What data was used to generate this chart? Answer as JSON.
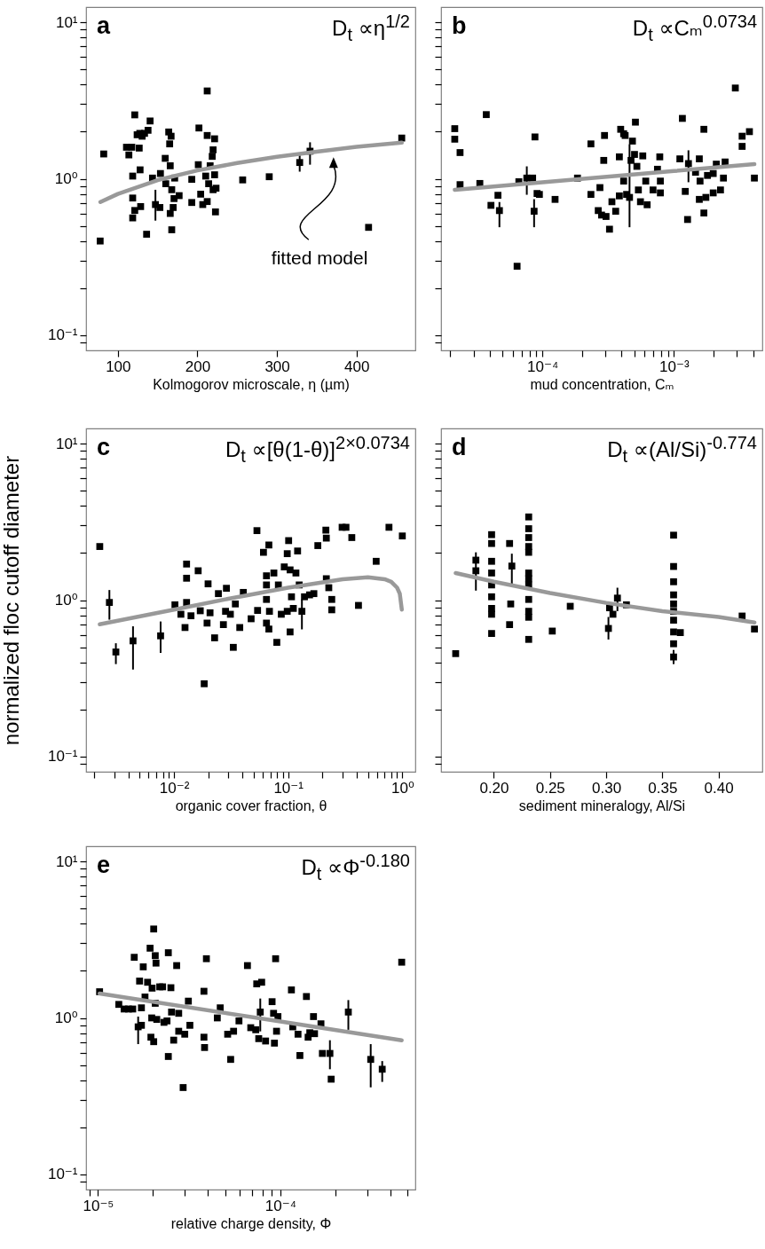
{
  "chart_data": [
    {
      "type": "scatter",
      "title": "a",
      "annotations": [
        "D$_{t}$ ∝η$^{1/2}$",
        "fitted model"
      ],
      "xlabel": "Kolmogorov microscale, η (µm)",
      "log": "y",
      "marker": "square",
      "xlim": [
        60,
        474
      ],
      "xticks": [
        100,
        200,
        300,
        400
      ],
      "ylim": [
        0.08,
        12.5
      ],
      "yticks": [
        {
          "value": 0.09,
          "label": null
        },
        {
          "value": 0.1,
          "label": "10⁻¹"
        },
        {
          "value": 0.2,
          "label": null
        },
        {
          "value": 0.3,
          "label": null
        },
        {
          "value": 0.4,
          "label": null
        },
        {
          "value": 0.5,
          "label": null
        },
        {
          "value": 0.6,
          "label": null
        },
        {
          "value": 0.7,
          "label": null
        },
        {
          "value": 0.8,
          "label": null
        },
        {
          "value": 0.9,
          "label": null
        },
        {
          "value": 1,
          "label": "10⁰"
        },
        {
          "value": 2,
          "label": null
        },
        {
          "value": 3,
          "label": null
        },
        {
          "value": 4,
          "label": null
        },
        {
          "value": 5,
          "label": null
        },
        {
          "value": 6,
          "label": null
        },
        {
          "value": 7,
          "label": null
        },
        {
          "value": 8,
          "label": null
        },
        {
          "value": 9,
          "label": null
        },
        {
          "value": 10,
          "label": "10¹"
        }
      ],
      "series": [
        {
          "color": "#000000",
          "x": [
            77.7,
            82.2,
            110.8,
            113.8,
            117.5,
            126.8,
            121.2,
            124.2,
            127.5,
            130.5,
            133.5,
            137.9,
            140.5,
            118.6,
            127.9,
            118.6,
            121.2,
            128.6,
            118.6,
            136.1,
            143.5,
            147.2,
            152.8,
            153.5,
            159.5,
            163.9,
            165.1,
            166.9,
            160.2,
            165.8,
            167.7,
            169.5,
            170.6,
            167.7,
            165.8,
            171.4,
            177.0,
            192.9,
            192.9,
            201.9,
            201.1,
            212.3,
            221.6,
            219.7,
            218.6,
            204.1,
            206.7,
            210.4,
            214.1,
            216.0,
            219.7,
            222.7,
            223.4,
            212.3,
            221.6,
            212.3,
            256.9,
            290.3,
            328.6,
            341.6,
            415.2,
            456.9
          ],
          "values": [
            0.4,
            1.44,
            1.59,
            1.42,
            1.59,
            1.57,
            2.56,
            1.91,
            1.95,
            1.87,
            1.95,
            2.04,
            2.34,
            1.04,
            1.14,
            0.753,
            0.627,
            0.664,
            0.562,
            0.442,
            1.01,
            0.684,
            0.655,
            1.08,
            1.35,
            1.99,
            1.67,
            1.87,
            0.929,
            1.21,
            0.851,
            0.655,
            0.747,
            0.472,
            0.6,
            1.01,
            0.78,
            0.991,
            0.705,
            2.11,
            1.23,
            1.89,
            1.8,
            1.53,
            1.39,
            0.797,
            0.684,
            1.04,
            0.929,
            1.21,
            0.851,
            0.614,
            0.87,
            0.715,
            1.06,
            3.64,
            0.983,
            1.03,
            1.27,
            1.5,
            0.489,
            1.82
          ],
          "errors": [
            null,
            null,
            null,
            null,
            null,
            null,
            null,
            null,
            null,
            null,
            null,
            null,
            null,
            null,
            null,
            null,
            null,
            null,
            null,
            null,
            null,
            [
              0.54,
              0.85
            ],
            null,
            null,
            null,
            null,
            null,
            null,
            null,
            null,
            null,
            null,
            null,
            null,
            null,
            null,
            null,
            null,
            null,
            null,
            null,
            null,
            null,
            null,
            null,
            null,
            null,
            null,
            null,
            null,
            null,
            null,
            null,
            null,
            null,
            null,
            null,
            null,
            [
              1.11,
              1.41
            ],
            [
              1.23,
              1.71
            ],
            null,
            null
          ]
        },
        {
          "type": "line",
          "marker": "none",
          "color": "#999999",
          "x": [
            78,
            100,
            150,
            200,
            250,
            300,
            350,
            400,
            457
          ],
          "values": [
            0.71,
            0.8,
            0.98,
            1.13,
            1.26,
            1.38,
            1.49,
            1.6,
            1.7
          ]
        }
      ]
    },
    {
      "type": "scatter",
      "title": "b",
      "annotations": [
        "D$_{t}$ ∝Cₘ$^{0.0734}$"
      ],
      "xlabel": "mud concentration, Cₘ",
      "log": "xy",
      "marker": "square",
      "tick_labels": "x",
      "xlim": [
        1.7e-05,
        0.0047
      ],
      "yticks": [
        {
          "value": 0.09,
          "label": null
        },
        {
          "value": 0.1,
          "label": null
        },
        {
          "value": 0.2,
          "label": null
        },
        {
          "value": 0.3,
          "label": null
        },
        {
          "value": 0.4,
          "label": null
        },
        {
          "value": 0.5,
          "label": null
        },
        {
          "value": 0.6,
          "label": null
        },
        {
          "value": 0.7,
          "label": null
        },
        {
          "value": 0.8,
          "label": null
        },
        {
          "value": 0.9,
          "label": null
        },
        {
          "value": 1,
          "label": null
        },
        {
          "value": 2,
          "label": null
        },
        {
          "value": 3,
          "label": null
        },
        {
          "value": 4,
          "label": null
        },
        {
          "value": 5,
          "label": null
        },
        {
          "value": 6,
          "label": null
        },
        {
          "value": 7,
          "label": null
        },
        {
          "value": 8,
          "label": null
        },
        {
          "value": 9,
          "label": null
        },
        {
          "value": 10,
          "label": null
        }
      ],
      "xticks": [
        {
          "value": 2e-05,
          "label": null
        },
        {
          "value": 3e-05,
          "label": null
        },
        {
          "value": 4e-05,
          "label": null
        },
        {
          "value": 5e-05,
          "label": null
        },
        {
          "value": 6e-05,
          "label": null
        },
        {
          "value": 7e-05,
          "label": null
        },
        {
          "value": 8e-05,
          "label": null
        },
        {
          "value": 9e-05,
          "label": null
        },
        {
          "value": 0.0001,
          "label": "10⁻⁴"
        },
        {
          "value": 0.0002,
          "label": null
        },
        {
          "value": 0.0003,
          "label": null
        },
        {
          "value": 0.0004,
          "label": null
        },
        {
          "value": 0.0005,
          "label": null
        },
        {
          "value": 0.0006,
          "label": null
        },
        {
          "value": 0.0007,
          "label": null
        },
        {
          "value": 0.0008,
          "label": null
        },
        {
          "value": 0.0009,
          "label": null
        },
        {
          "value": 0.001,
          "label": "10⁻³"
        },
        {
          "value": 0.002,
          "label": null
        },
        {
          "value": 0.003,
          "label": null
        },
        {
          "value": 0.004,
          "label": null
        }
      ],
      "ylim": [
        0.08,
        12.5
      ],
      "series": [
        {
          "color": "#000000",
          "x": [
            2.16e-05,
            2.16e-05,
            2.37e-05,
            2.37e-05,
            3.75e-05,
            3.35e-05,
            4.07e-05,
            4.6e-05,
            4.72e-05,
            6.43e-05,
            6.63e-05,
            7.62e-05,
            8.44e-05,
            8.79e-05,
            8.66e-05,
            9.12e-05,
            9.5e-05,
            0.000125,
            0.000185,
            0.000234,
            0.000234,
            0.000274,
            0.000297,
            0.000293,
            0.000266,
            0.000282,
            0.000305,
            0.000324,
            0.000338,
            0.000361,
            0.000385,
            0.000385,
            0.000394,
            0.000415,
            0.000426,
            0.000415,
            0.000437,
            0.00046,
            0.000484,
            0.000472,
            0.00051,
            0.000502,
            0.000523,
            0.000537,
            0.00058,
            0.000557,
            0.000611,
            0.000626,
            0.000694,
            0.00075,
            0.000781,
            0.000789,
            0.000789,
            0.00111,
            0.00116,
            0.00122,
            0.00129,
            0.00127,
            0.00146,
            0.00156,
            0.00158,
            0.00156,
            0.00169,
            0.00169,
            0.00175,
            0.0018,
            0.00199,
            0.00199,
            0.0021,
            0.00226,
            0.00238,
            0.00245,
            0.00293,
            0.0033,
            0.0033,
            0.00375,
            0.00409
          ],
          "values": [
            2.09,
            1.79,
            1.47,
            0.917,
            2.57,
            0.933,
            0.676,
            0.784,
            0.626,
            0.276,
            0.957,
            1.01,
            1.01,
            1.85,
            0.62,
            0.805,
            0.794,
            0.738,
            1.01,
            1.67,
            0.794,
            0.878,
            1.89,
            1.31,
            0.626,
            0.586,
            0.574,
            0.476,
            0.713,
            0.62,
            1.38,
            0.777,
            2.07,
            1.94,
            1.89,
            0.966,
            0.794,
            0.76,
            1.74,
            1.31,
            2.3,
            1.43,
            1.2,
            0.848,
            1.4,
            0.713,
            0.966,
            0.682,
            0.848,
            1.15,
            1.38,
            0.966,
            0.812,
            1.34,
            2.43,
            0.83,
            1.25,
            0.549,
            1.1,
            1.34,
            0.966,
            0.738,
            2.07,
            0.604,
            0.76,
            1.05,
            1.08,
            0.812,
            1.24,
            0.848,
            1.01,
            1.28,
            3.8,
            1.87,
            1.61,
            2.0,
            1.01
          ],
          "errors": [
            null,
            null,
            null,
            null,
            null,
            null,
            null,
            null,
            [
              0.49,
              0.71
            ],
            null,
            null,
            [
              0.79,
              1.2
            ],
            null,
            null,
            [
              0.49,
              0.74
            ],
            null,
            null,
            null,
            null,
            null,
            null,
            null,
            null,
            null,
            null,
            null,
            null,
            null,
            null,
            null,
            null,
            null,
            null,
            null,
            null,
            null,
            null,
            [
              0.49,
              1.66
            ],
            null,
            null,
            null,
            null,
            null,
            null,
            null,
            null,
            null,
            null,
            null,
            null,
            null,
            null,
            null,
            null,
            null,
            null,
            [
              0.95,
              1.52
            ],
            null,
            null,
            null,
            null,
            null,
            null,
            null,
            null,
            null,
            null,
            null,
            null,
            null,
            null,
            null,
            null,
            null,
            null,
            null,
            null
          ]
        },
        {
          "type": "line",
          "marker": "none",
          "color": "#999999",
          "x": [
            2.16e-05,
            0.0001,
            0.001,
            0.00409
          ],
          "values": [
            0.85,
            0.95,
            1.12,
            1.24
          ]
        }
      ]
    },
    {
      "type": "scatter",
      "title": "c",
      "annotations": [
        "D$_{t}$ ∝[θ(1-θ)]$^{2×0.0734}$"
      ],
      "xlabel": "organic cover fraction, θ",
      "ylabel": "normalized floc cutoff diameter",
      "log": "xy",
      "marker": "square",
      "xlim": [
        0.0017,
        1.3
      ],
      "xticks": [
        {
          "value": 0.002,
          "label": null
        },
        {
          "value": 0.003,
          "label": null
        },
        {
          "value": 0.004,
          "label": null
        },
        {
          "value": 0.005,
          "label": null
        },
        {
          "value": 0.006,
          "label": null
        },
        {
          "value": 0.007,
          "label": null
        },
        {
          "value": 0.008,
          "label": null
        },
        {
          "value": 0.009,
          "label": null
        },
        {
          "value": 0.01,
          "label": "10⁻²"
        },
        {
          "value": 0.02,
          "label": null
        },
        {
          "value": 0.03,
          "label": null
        },
        {
          "value": 0.04,
          "label": null
        },
        {
          "value": 0.05,
          "label": null
        },
        {
          "value": 0.06,
          "label": null
        },
        {
          "value": 0.07,
          "label": null
        },
        {
          "value": 0.08,
          "label": null
        },
        {
          "value": 0.09,
          "label": null
        },
        {
          "value": 0.1,
          "label": "10⁻¹"
        },
        {
          "value": 0.2,
          "label": null
        },
        {
          "value": 0.3,
          "label": null
        },
        {
          "value": 0.4,
          "label": null
        },
        {
          "value": 0.5,
          "label": null
        },
        {
          "value": 0.6,
          "label": null
        },
        {
          "value": 0.7,
          "label": null
        },
        {
          "value": 0.8,
          "label": null
        },
        {
          "value": 0.9,
          "label": null
        },
        {
          "value": 1,
          "label": "10⁰"
        }
      ],
      "ylim": [
        0.08,
        12.5
      ],
      "yticks": [
        {
          "value": 0.09,
          "label": null
        },
        {
          "value": 0.1,
          "label": "10⁻¹"
        },
        {
          "value": 0.2,
          "label": null
        },
        {
          "value": 0.3,
          "label": null
        },
        {
          "value": 0.4,
          "label": null
        },
        {
          "value": 0.5,
          "label": null
        },
        {
          "value": 0.6,
          "label": null
        },
        {
          "value": 0.7,
          "label": null
        },
        {
          "value": 0.8,
          "label": null
        },
        {
          "value": 0.9,
          "label": null
        },
        {
          "value": 1,
          "label": "10⁰"
        },
        {
          "value": 2,
          "label": null
        },
        {
          "value": 3,
          "label": null
        },
        {
          "value": 4,
          "label": null
        },
        {
          "value": 5,
          "label": null
        },
        {
          "value": 6,
          "label": null
        },
        {
          "value": 7,
          "label": null
        },
        {
          "value": 8,
          "label": null
        },
        {
          "value": 9,
          "label": null
        },
        {
          "value": 10,
          "label": "10¹"
        }
      ],
      "series": [
        {
          "color": "#000000",
          "x": [
            0.00224,
            0.00272,
            0.0031,
            0.00438,
            0.00764,
            0.0102,
            0.0129,
            0.0129,
            0.0129,
            0.0115,
            0.0125,
            0.0141,
            0.0163,
            0.017,
            0.0199,
            0.0195,
            0.0207,
            0.0227,
            0.0245,
            0.0288,
            0.0283,
            0.0271,
            0.0312,
            0.0331,
            0.0345,
            0.0377,
            0.0405,
            0.0184,
            0.0474,
            0.0533,
            0.054,
            0.0608,
            0.0678,
            0.0646,
            0.0646,
            0.0646,
            0.0646,
            0.0686,
            0.0678,
            0.075,
            0.0796,
            0.0821,
            0.0871,
            0.0925,
            0.0982,
            0.101,
            0.0982,
            0.104,
            0.107,
            0.104,
            0.111,
            0.117,
            0.121,
            0.125,
            0.132,
            0.139,
            0.154,
            0.168,
            0.182,
            0.216,
            0.214,
            0.216,
            0.227,
            0.241,
            0.241,
            0.297,
            0.321,
            0.361,
            0.413,
            0.59,
            0.764,
            1.0
          ],
          "values": [
            2.2,
            0.966,
            0.466,
            0.549,
            0.591,
            0.933,
            1.7,
            1.38,
            0.966,
            0.812,
            0.668,
            0.794,
            1.54,
            0.855,
            1.27,
            0.713,
            0.83,
            0.574,
            1.1,
            1.19,
            0.848,
            0.697,
            0.812,
            0.499,
            0.945,
            0.668,
            1.12,
            0.292,
            0.76,
            2.78,
            0.859,
            2.02,
            2.25,
            1.43,
            1.25,
            1.01,
            0.713,
            0.848,
            0.653,
            1.49,
            0.537,
            1.25,
            0.812,
            1.63,
            0.848,
            2.4,
            1.98,
            1.56,
            1.05,
            0.626,
            0.885,
            1.49,
            2.06,
            1.25,
            0.848,
            1.05,
            1.08,
            1.1,
            2.23,
            2.49,
            2.8,
            1.37,
            1.2,
            1.01,
            0.867,
            2.92,
            2.92,
            2.51,
            0.925,
            1.77,
            2.92,
            2.57
          ],
          "errors": [
            null,
            [
              0.75,
              1.16
            ],
            [
              0.39,
              0.53
            ],
            [
              0.36,
              0.68
            ],
            [
              0.46,
              0.73
            ],
            null,
            null,
            null,
            null,
            null,
            null,
            null,
            null,
            null,
            null,
            null,
            null,
            null,
            null,
            null,
            null,
            null,
            null,
            null,
            null,
            null,
            null,
            null,
            null,
            null,
            null,
            null,
            null,
            null,
            null,
            null,
            null,
            null,
            null,
            null,
            null,
            null,
            null,
            null,
            null,
            null,
            null,
            null,
            null,
            null,
            null,
            null,
            null,
            null,
            [
              0.65,
              1.01
            ],
            null,
            null,
            null,
            null,
            null,
            null,
            null,
            null,
            null,
            null,
            null,
            null,
            null,
            null,
            null,
            null,
            null
          ]
        },
        {
          "type": "line",
          "marker": "none",
          "color": "#999999",
          "x": [
            0.00224,
            0.01,
            0.03,
            0.1,
            0.3,
            0.5,
            0.7,
            0.8,
            0.9,
            0.95,
            0.99
          ],
          "values": [
            0.7,
            0.87,
            1.02,
            1.2,
            1.36,
            1.4,
            1.36,
            1.31,
            1.2,
            1.1,
            0.87
          ]
        }
      ]
    },
    {
      "type": "scatter",
      "title": "d",
      "annotations": [
        "D$_{t}$ ∝(Al/Si)$^{-0.774}$"
      ],
      "xlabel": "sediment mineralogy, Al/Si",
      "log": "y",
      "marker": "square",
      "tick_labels": "x",
      "xlim": [
        0.153,
        0.439
      ],
      "yticks": [
        {
          "value": 0.09,
          "label": null
        },
        {
          "value": 0.1,
          "label": null
        },
        {
          "value": 0.2,
          "label": null
        },
        {
          "value": 0.3,
          "label": null
        },
        {
          "value": 0.4,
          "label": null
        },
        {
          "value": 0.5,
          "label": null
        },
        {
          "value": 0.6,
          "label": null
        },
        {
          "value": 0.7,
          "label": null
        },
        {
          "value": 0.8,
          "label": null
        },
        {
          "value": 0.9,
          "label": null
        },
        {
          "value": 1,
          "label": null
        },
        {
          "value": 2,
          "label": null
        },
        {
          "value": 3,
          "label": null
        },
        {
          "value": 4,
          "label": null
        },
        {
          "value": 5,
          "label": null
        },
        {
          "value": 6,
          "label": null
        },
        {
          "value": 7,
          "label": null
        },
        {
          "value": 8,
          "label": null
        },
        {
          "value": 9,
          "label": null
        },
        {
          "value": 10,
          "label": null
        }
      ],
      "xticks": [
        {
          "value": 0.2,
          "label": "0.20"
        },
        {
          "value": 0.25,
          "label": "0.25"
        },
        {
          "value": 0.3,
          "label": "0.30"
        },
        {
          "value": 0.35,
          "label": "0.35"
        },
        {
          "value": 0.4,
          "label": "0.40"
        }
      ],
      "ylim": [
        0.08,
        12.5
      ],
      "series": [
        {
          "color": "#000000",
          "x": [
            0.166,
            0.184,
            0.184,
            0.198,
            0.198,
            0.198,
            0.198,
            0.198,
            0.198,
            0.198,
            0.198,
            0.198,
            0.214,
            0.216,
            0.215,
            0.214,
            0.231,
            0.231,
            0.231,
            0.231,
            0.231,
            0.231,
            0.231,
            0.231,
            0.231,
            0.231,
            0.231,
            0.231,
            0.252,
            0.268,
            0.302,
            0.303,
            0.306,
            0.31,
            0.318,
            0.36,
            0.36,
            0.36,
            0.36,
            0.36,
            0.36,
            0.36,
            0.36,
            0.36,
            0.36,
            0.366,
            0.421,
            0.432
          ],
          "values": [
            0.455,
            1.8,
            1.54,
            2.62,
            2.3,
            1.77,
            1.49,
            1.25,
            1.05,
            0.885,
            0.812,
            0.612,
            2.3,
            1.65,
            0.945,
            0.697,
            3.4,
            2.86,
            2.51,
            2.2,
            2.02,
            1.49,
            1.37,
            1.25,
            1.01,
            0.848,
            0.777,
            0.561,
            0.634,
            0.913,
            0.659,
            0.893,
            0.812,
            1.03,
            0.933,
            2.6,
            1.64,
            1.31,
            1.08,
            0.945,
            0.848,
            0.744,
            0.626,
            0.526,
            0.433,
            0.62,
            0.791,
            0.653
          ],
          "errors": [
            null,
            null,
            [
              1.15,
              2.02
            ],
            null,
            null,
            null,
            null,
            null,
            null,
            null,
            null,
            null,
            null,
            [
              1.25,
              1.98
            ],
            null,
            null,
            null,
            null,
            null,
            null,
            null,
            null,
            null,
            null,
            null,
            null,
            null,
            null,
            null,
            null,
            [
              0.56,
              0.78
            ],
            null,
            null,
            [
              0.85,
              1.2
            ],
            null,
            null,
            null,
            null,
            null,
            null,
            null,
            null,
            null,
            null,
            [
              0.39,
              0.48
            ],
            null,
            null,
            null
          ]
        },
        {
          "type": "line",
          "marker": "none",
          "color": "#999999",
          "x": [
            0.166,
            0.2,
            0.25,
            0.3,
            0.35,
            0.4,
            0.432
          ],
          "values": [
            1.49,
            1.31,
            1.11,
            0.96,
            0.85,
            0.78,
            0.72
          ]
        }
      ]
    },
    {
      "type": "scatter",
      "title": "e",
      "annotations": [
        "D$_{t}$ ∝Φ$^{-0.180}$"
      ],
      "xlabel": "relative charge density, Φ",
      "log": "xy",
      "marker": "square",
      "xlim": [
        8.6e-06,
        0.00055
      ],
      "xticks": [
        {
          "value": 9e-06,
          "label": null
        },
        {
          "value": 1e-05,
          "label": "10⁻⁵"
        },
        {
          "value": 2e-05,
          "label": null
        },
        {
          "value": 3e-05,
          "label": null
        },
        {
          "value": 4e-05,
          "label": null
        },
        {
          "value": 5e-05,
          "label": null
        },
        {
          "value": 6e-05,
          "label": null
        },
        {
          "value": 7e-05,
          "label": null
        },
        {
          "value": 8e-05,
          "label": null
        },
        {
          "value": 9e-05,
          "label": null
        },
        {
          "value": 0.0001,
          "label": "10⁻⁴"
        },
        {
          "value": 0.0002,
          "label": null
        },
        {
          "value": 0.0003,
          "label": null
        },
        {
          "value": 0.0004,
          "label": null
        },
        {
          "value": 0.0005,
          "label": null
        }
      ],
      "ylim": [
        0.08,
        12.5
      ],
      "yticks": [
        {
          "value": 0.09,
          "label": null
        },
        {
          "value": 0.1,
          "label": "10⁻¹"
        },
        {
          "value": 0.2,
          "label": null
        },
        {
          "value": 0.3,
          "label": null
        },
        {
          "value": 0.4,
          "label": null
        },
        {
          "value": 0.5,
          "label": null
        },
        {
          "value": 0.6,
          "label": null
        },
        {
          "value": 0.7,
          "label": null
        },
        {
          "value": 0.8,
          "label": null
        },
        {
          "value": 0.9,
          "label": null
        },
        {
          "value": 1,
          "label": "10⁰"
        },
        {
          "value": 2,
          "label": null
        },
        {
          "value": 3,
          "label": null
        },
        {
          "value": 4,
          "label": null
        },
        {
          "value": 5,
          "label": null
        },
        {
          "value": 6,
          "label": null
        },
        {
          "value": 7,
          "label": null
        },
        {
          "value": 8,
          "label": null
        },
        {
          "value": 9,
          "label": null
        },
        {
          "value": 10,
          "label": "10¹"
        }
      ],
      "series": [
        {
          "color": "#000000",
          "x": [
            1.02e-05,
            1.3e-05,
            1.39e-05,
            1.47e-05,
            1.55e-05,
            1.58e-05,
            1.66e-05,
            1.73e-05,
            1.69e-05,
            1.73e-05,
            1.77e-05,
            1.81e-05,
            1.87e-05,
            1.93e-05,
            1.98e-05,
            2.02e-05,
            1.95e-05,
            2.02e-05,
            2.06e-05,
            2.08e-05,
            2.06e-05,
            1.97e-05,
            2.1e-05,
            2.18e-05,
            2.26e-05,
            2.3e-05,
            2.39e-05,
            2.43e-05,
            2.43e-05,
            2.51e-05,
            2.53e-05,
            2.6e-05,
            2.7e-05,
            2.77e-05,
            2.77e-05,
            2.93e-05,
            2.99e-05,
            3.13e-05,
            3.19e-05,
            3.81e-05,
            3.81e-05,
            3.84e-05,
            3.93e-05,
            4.51e-05,
            4.68e-05,
            5.14e-05,
            5.34e-05,
            5.54e-05,
            5.93e-05,
            6.6e-05,
            6.88e-05,
            7.33e-05,
            7.42e-05,
            7.61e-05,
            7.9e-05,
            7.76e-05,
            8.3e-05,
            9.01e-05,
            9.18e-05,
            9.28e-05,
            9.42e-05,
            9.53e-05,
            9.7e-05,
            0.000115,
            0.000117,
            0.000125,
            0.000128,
            0.000139,
            0.000142,
            0.000145,
            0.000152,
            0.000154,
            0.000167,
            0.00017,
            0.00019,
            0.000187,
            0.000236,
            0.000313,
            0.000362,
            0.000463
          ],
          "values": [
            1.47,
            1.22,
            1.14,
            1.14,
            1.14,
            2.44,
            0.877,
            0.897,
            1.72,
            1.16,
            2.12,
            1.36,
            1.69,
            2.79,
            1.55,
            3.7,
            0.753,
            0.705,
            2.5,
            2.24,
            1.24,
            1.0,
            0.978,
            1.58,
            1.58,
            0.937,
            0.957,
            2.61,
            0.567,
            1.56,
            1.09,
            0.721,
            2.16,
            1.07,
            0.822,
            0.359,
            0.787,
            1.28,
            0.897,
            1.48,
            0.753,
            0.647,
            2.39,
            1.0,
            1.16,
            0.787,
            0.543,
            0.822,
            0.957,
            2.16,
            0.866,
            0.84,
            1.65,
            0.737,
            1.69,
            1.09,
            0.712,
            1.27,
            1.07,
            0.69,
            2.39,
            0.822,
            1.02,
            1.51,
            0.877,
            0.787,
            0.575,
            1.37,
            0.753,
            0.804,
            1.02,
            0.793,
            0.917,
            0.593,
            0.406,
            0.593,
            1.09,
            0.543,
            0.47,
            2.27
          ],
          "errors": [
            null,
            null,
            null,
            null,
            null,
            null,
            [
              0.68,
              1.02
            ],
            null,
            null,
            null,
            null,
            null,
            null,
            null,
            null,
            null,
            null,
            null,
            null,
            null,
            null,
            null,
            null,
            null,
            null,
            null,
            null,
            null,
            null,
            null,
            null,
            null,
            null,
            null,
            null,
            null,
            null,
            null,
            null,
            null,
            null,
            null,
            null,
            null,
            null,
            null,
            null,
            null,
            null,
            null,
            null,
            null,
            null,
            null,
            null,
            [
              0.82,
              1.33
            ],
            null,
            null,
            null,
            null,
            null,
            null,
            null,
            null,
            null,
            null,
            null,
            null,
            null,
            null,
            null,
            null,
            null,
            null,
            null,
            [
              0.47,
              0.72
            ],
            [
              0.84,
              1.3
            ],
            [
              0.36,
              0.68
            ],
            [
              0.39,
              0.53
            ],
            null
          ]
        },
        {
          "type": "line",
          "marker": "none",
          "color": "#999999",
          "x": [
            1.02e-05,
            0.0001,
            0.000463
          ],
          "values": [
            1.43,
            0.95,
            0.72
          ]
        }
      ]
    }
  ]
}
